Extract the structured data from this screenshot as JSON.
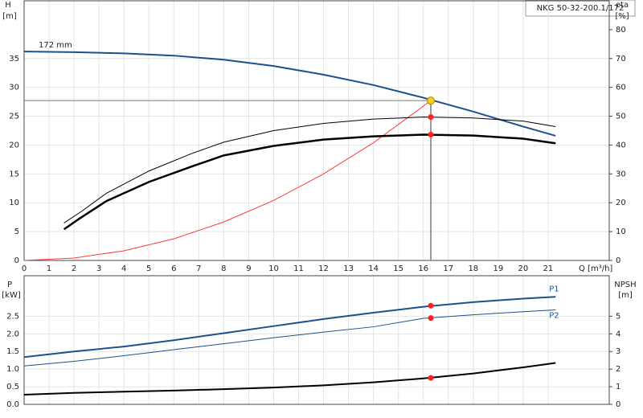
{
  "chart_data": [
    {
      "type": "line",
      "title": "NKG 50-32-200.1/172",
      "ylabel": "H",
      "yunit": "[m]",
      "y2label": "eta",
      "y2unit": "[%]",
      "xlabel": "Q [m³/h]",
      "annotation": "172 mm",
      "grid": true,
      "xlim": [
        0,
        23.45
      ],
      "xticks": [
        0,
        1,
        2,
        3,
        4,
        5,
        6,
        7,
        8,
        9,
        10,
        11,
        12,
        13,
        14,
        15,
        16,
        17,
        18,
        19,
        20,
        21
      ],
      "ylim": [
        0,
        45
      ],
      "yticks": [
        0,
        5,
        10,
        15,
        20,
        25,
        30,
        35
      ],
      "y2lim": [
        0,
        90
      ],
      "y2ticks": [
        0,
        10,
        20,
        30,
        40,
        50,
        60,
        70,
        80
      ],
      "duty_point": {
        "x": 16.3,
        "y": 27.7,
        "color": "#f5d020"
      },
      "series": [
        {
          "color": "#1f4f8c",
          "width": 2,
          "x": [
            0,
            2,
            4,
            6,
            8,
            10,
            12,
            14,
            16,
            18,
            20,
            21.3
          ],
          "values": [
            36.2,
            36.1,
            35.9,
            35.5,
            34.8,
            33.7,
            32.2,
            30.4,
            28.2,
            25.8,
            23.2,
            21.6
          ]
        },
        {
          "color": "#ff3b3b",
          "width": 1,
          "x": [
            0,
            2,
            4,
            6,
            8,
            10,
            12,
            14,
            16.3
          ],
          "values": [
            0,
            0.42,
            1.67,
            3.75,
            6.67,
            10.4,
            15,
            20.4,
            27.7
          ]
        },
        {
          "color": "#000000",
          "width": 1,
          "axis": "y2",
          "x": [
            1.6,
            2.3,
            3.3,
            5,
            6.7,
            8,
            10,
            12,
            14,
            16,
            18,
            20,
            21.3
          ],
          "values": [
            13,
            17,
            23.3,
            31,
            37,
            41,
            45,
            47.5,
            49,
            49.7,
            49.4,
            48.3,
            46.4
          ],
          "point": 49.7
        },
        {
          "color": "#000000",
          "width": 2.5,
          "axis": "y2",
          "x": [
            1.6,
            2.2,
            3.3,
            5,
            6.7,
            8,
            10,
            12,
            14,
            16,
            18,
            20,
            21.3
          ],
          "values": [
            10.8,
            14.4,
            20.6,
            27.2,
            32.5,
            36.4,
            39.7,
            41.9,
            43,
            43.6,
            43.3,
            42.2,
            40.6
          ],
          "point": 43.6
        }
      ]
    },
    {
      "type": "line",
      "ylabel": "P",
      "yunit": "[kW]",
      "y2label": "NPSH",
      "y2unit": "[m]",
      "grid": true,
      "xlim": [
        0,
        23.45
      ],
      "xticks": [
        0,
        1,
        2,
        3,
        4,
        5,
        6,
        7,
        8,
        9,
        10,
        11,
        12,
        13,
        14,
        15,
        16,
        17,
        18,
        19,
        20,
        21
      ],
      "ylim": [
        0,
        3.65
      ],
      "yticks": [
        {
          "value": 0,
          "label": "0.0"
        },
        0.5,
        {
          "value": 1,
          "label": "1.0"
        },
        1.5,
        {
          "value": 2,
          "label": "2.0"
        },
        2.5
      ],
      "y2lim": [
        0,
        7.3
      ],
      "y2ticks": [
        0,
        1,
        2,
        3,
        4,
        5
      ],
      "duty_x": 16.3,
      "series": [
        {
          "label": "P1",
          "color": "#1f4f8c",
          "width": 2,
          "x": [
            0,
            2,
            4,
            6,
            8,
            10,
            12,
            14,
            16,
            18,
            20,
            21.3
          ],
          "values": [
            1.34,
            1.5,
            1.64,
            1.82,
            2.02,
            2.22,
            2.42,
            2.6,
            2.77,
            2.9,
            3,
            3.05
          ],
          "point": 2.8
        },
        {
          "label": "P2",
          "color": "#1f4f8c",
          "width": 1,
          "x": [
            0,
            2,
            4,
            6,
            8,
            10,
            12,
            14,
            16,
            18,
            20,
            21.3
          ],
          "values": [
            1.09,
            1.22,
            1.38,
            1.55,
            1.72,
            1.89,
            2.05,
            2.2,
            2.44,
            2.54,
            2.63,
            2.68
          ],
          "point": 2.45
        },
        {
          "color": "#000000",
          "width": 2,
          "axis": "y2",
          "x": [
            0,
            2,
            4,
            6,
            8,
            10,
            12,
            14,
            16,
            18,
            20,
            21.3
          ],
          "values": [
            0.55,
            0.65,
            0.72,
            0.78,
            0.86,
            0.95,
            1.08,
            1.25,
            1.47,
            1.75,
            2.1,
            2.35
          ],
          "point": 1.5
        }
      ]
    }
  ]
}
